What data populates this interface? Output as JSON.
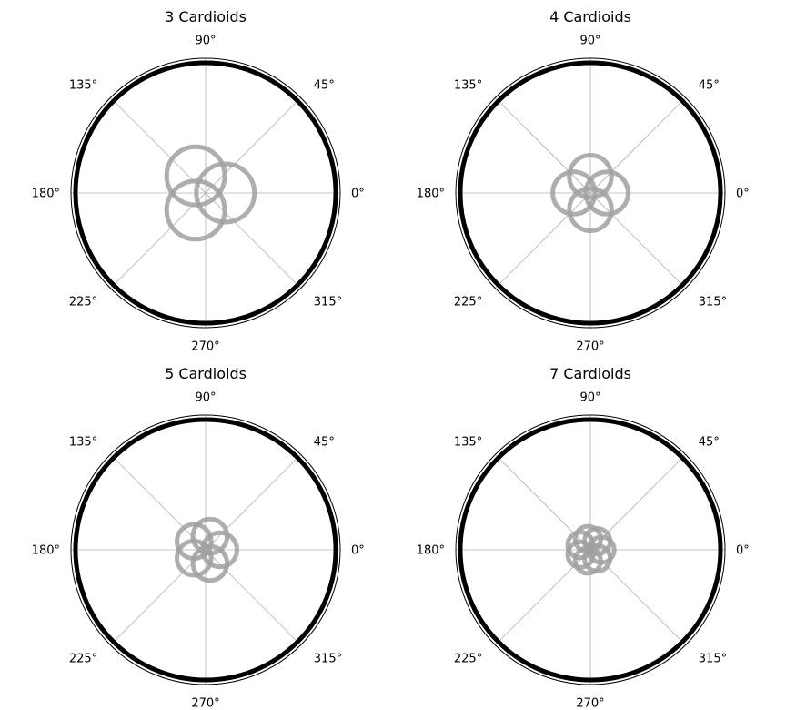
{
  "colors": {
    "background": "#ffffff",
    "frame": "#000000",
    "outer_ring": "#000000",
    "grid": "#b0b0b0",
    "curve": "#a0a0a0"
  },
  "chart_data": [
    {
      "type": "line",
      "projection": "polar",
      "title": "3 Cardioids",
      "angle_ticks": [
        "0°",
        "45°",
        "90°",
        "135°",
        "180°",
        "225°",
        "270°",
        "315°"
      ],
      "grid": true,
      "rlim": [
        0,
        1.0
      ],
      "outer_ring_r": 0.98,
      "cardioid_count": 3,
      "rotation_offset_deg": 0,
      "circle_radius": 0.216,
      "circle_center_distance": 0.147,
      "series": [
        {
          "rotation_deg": 0
        },
        {
          "rotation_deg": 120
        },
        {
          "rotation_deg": 240
        }
      ]
    },
    {
      "type": "line",
      "projection": "polar",
      "title": "4 Cardioids",
      "angle_ticks": [
        "0°",
        "45°",
        "90°",
        "135°",
        "180°",
        "225°",
        "270°",
        "315°"
      ],
      "grid": true,
      "rlim": [
        0,
        1.0
      ],
      "outer_ring_r": 0.98,
      "cardioid_count": 4,
      "rotation_offset_deg": 0,
      "circle_radius": 0.157,
      "circle_center_distance": 0.123,
      "series": [
        {
          "rotation_deg": 0
        },
        {
          "rotation_deg": 90
        },
        {
          "rotation_deg": 180
        },
        {
          "rotation_deg": 270
        }
      ]
    },
    {
      "type": "line",
      "projection": "polar",
      "title": "5 Cardioids",
      "angle_ticks": [
        "0°",
        "45°",
        "90°",
        "135°",
        "180°",
        "225°",
        "270°",
        "315°"
      ],
      "grid": true,
      "rlim": [
        0,
        1.0
      ],
      "outer_ring_r": 0.98,
      "cardioid_count": 5,
      "rotation_offset_deg": 0,
      "circle_radius": 0.127,
      "circle_center_distance": 0.106,
      "series": [
        {
          "rotation_deg": 0
        },
        {
          "rotation_deg": 72
        },
        {
          "rotation_deg": 144
        },
        {
          "rotation_deg": 216
        },
        {
          "rotation_deg": 288
        }
      ]
    },
    {
      "type": "line",
      "projection": "polar",
      "title": "7 Cardioids",
      "angle_ticks": [
        "0°",
        "45°",
        "90°",
        "135°",
        "180°",
        "225°",
        "270°",
        "315°"
      ],
      "grid": true,
      "rlim": [
        0,
        1.0
      ],
      "outer_ring_r": 0.98,
      "cardioid_count": 7,
      "rotation_offset_deg": 0,
      "circle_radius": 0.095,
      "circle_center_distance": 0.082,
      "series": [
        {
          "rotation_deg": 0
        },
        {
          "rotation_deg": 51.43
        },
        {
          "rotation_deg": 102.86
        },
        {
          "rotation_deg": 154.29
        },
        {
          "rotation_deg": 205.71
        },
        {
          "rotation_deg": 257.14
        },
        {
          "rotation_deg": 308.57
        }
      ]
    }
  ]
}
